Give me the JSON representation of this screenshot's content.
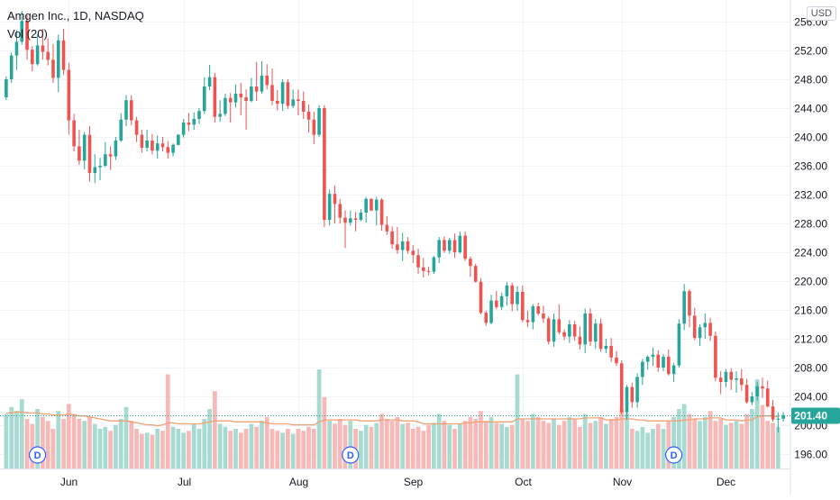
{
  "chart_data": {
    "type": "candlestick",
    "title": "Amgen Inc., 1D, NASDAQ",
    "indicator": "Vol (20)",
    "currency_label": "USD",
    "last_price": "201.40",
    "ylim": [
      194,
      259
    ],
    "y_ticks": [
      "256.00",
      "252.00",
      "248.00",
      "244.00",
      "240.00",
      "236.00",
      "232.00",
      "228.00",
      "224.00",
      "220.00",
      "216.00",
      "212.00",
      "208.00",
      "204.00",
      "200.00",
      "196.00"
    ],
    "x_tick_labels": [
      "Jun",
      "Jul",
      "Aug",
      "Sep",
      "Oct",
      "Nov",
      "Dec"
    ],
    "x_tick_index": [
      12,
      34,
      56,
      78,
      99,
      118,
      138
    ],
    "dividend_marker_label": "D",
    "dividend_index": [
      6,
      66,
      128
    ],
    "colors": {
      "up": "#26a69a",
      "down": "#ef5350",
      "vol_up": "#a7dbd2",
      "vol_down": "#f7b9b8",
      "vol_ma": "#f2a170",
      "last_price_bg": "#26a69a"
    },
    "candles": [
      [
        245.5,
        248.4,
        245.1,
        248.0
      ],
      [
        248.0,
        251.7,
        247.5,
        251.3
      ],
      [
        251.3,
        254.8,
        249.3,
        253.2
      ],
      [
        253.2,
        257.5,
        252.8,
        256.1
      ],
      [
        256.1,
        256.9,
        250.7,
        252.1
      ],
      [
        252.1,
        252.6,
        249.1,
        250.1
      ],
      [
        250.1,
        254.2,
        249.9,
        252.7
      ],
      [
        252.7,
        255.0,
        250.7,
        251.8
      ],
      [
        251.8,
        253.7,
        249.9,
        250.7
      ],
      [
        250.7,
        252.9,
        247.5,
        248.2
      ],
      [
        248.2,
        254.2,
        246.2,
        253.4
      ],
      [
        253.4,
        255.0,
        248.6,
        249.3
      ],
      [
        249.3,
        250.3,
        240.3,
        242.3
      ],
      [
        242.3,
        243.2,
        238.0,
        238.7
      ],
      [
        238.7,
        241.0,
        236.1,
        236.7
      ],
      [
        236.7,
        240.7,
        235.5,
        240.3
      ],
      [
        240.3,
        241.5,
        233.8,
        235.0
      ],
      [
        235.0,
        237.6,
        233.6,
        235.8
      ],
      [
        235.8,
        237.1,
        234.0,
        236.0
      ],
      [
        236.0,
        239.3,
        235.8,
        237.6
      ],
      [
        237.6,
        238.7,
        235.4,
        237.3
      ],
      [
        237.3,
        240.0,
        236.8,
        239.5
      ],
      [
        239.5,
        243.3,
        239.3,
        242.4
      ],
      [
        242.4,
        245.8,
        241.5,
        245.1
      ],
      [
        245.1,
        245.8,
        241.6,
        242.3
      ],
      [
        242.3,
        242.8,
        239.3,
        240.3
      ],
      [
        240.3,
        241.0,
        237.8,
        238.5
      ],
      [
        238.5,
        241.0,
        238.0,
        239.5
      ],
      [
        239.5,
        240.4,
        237.6,
        238.1
      ],
      [
        238.1,
        240.2,
        237.0,
        239.1
      ],
      [
        239.1,
        240.0,
        238.0,
        238.6
      ],
      [
        238.6,
        239.4,
        237.0,
        237.8
      ],
      [
        237.8,
        239.1,
        237.3,
        238.9
      ],
      [
        238.9,
        240.4,
        238.8,
        240.3
      ],
      [
        240.3,
        242.5,
        239.9,
        242.0
      ],
      [
        242.0,
        243.3,
        240.8,
        241.7
      ],
      [
        241.7,
        243.4,
        241.0,
        242.5
      ],
      [
        242.5,
        244.0,
        241.8,
        243.6
      ],
      [
        243.6,
        248.3,
        243.2,
        247.0
      ],
      [
        247.0,
        250.0,
        246.5,
        248.3
      ],
      [
        248.3,
        248.9,
        242.0,
        242.8
      ],
      [
        242.8,
        245.1,
        242.1,
        243.2
      ],
      [
        243.2,
        246.0,
        242.9,
        245.4
      ],
      [
        245.4,
        246.1,
        242.0,
        244.8
      ],
      [
        244.8,
        247.3,
        244.1,
        246.0
      ],
      [
        246.0,
        247.5,
        243.0,
        245.5
      ],
      [
        245.5,
        246.6,
        241.0,
        245.0
      ],
      [
        245.0,
        248.2,
        244.8,
        247.0
      ],
      [
        247.0,
        250.4,
        245.0,
        246.3
      ],
      [
        246.3,
        250.5,
        246.0,
        248.5
      ],
      [
        248.5,
        250.1,
        246.6,
        247.2
      ],
      [
        247.2,
        249.5,
        244.4,
        245.0
      ],
      [
        245.0,
        246.5,
        243.7,
        244.6
      ],
      [
        244.6,
        248.0,
        243.6,
        247.6
      ],
      [
        247.6,
        248.0,
        243.9,
        244.3
      ],
      [
        244.3,
        246.6,
        244.0,
        245.2
      ],
      [
        245.2,
        246.6,
        243.0,
        245.0
      ],
      [
        245.0,
        246.3,
        242.5,
        243.5
      ],
      [
        243.5,
        244.5,
        240.6,
        242.4
      ],
      [
        242.4,
        243.5,
        239.0,
        240.3
      ],
      [
        240.3,
        244.4,
        240.0,
        244.0
      ],
      [
        244.0,
        244.4,
        227.5,
        228.5
      ],
      [
        228.5,
        232.7,
        227.7,
        232.1
      ],
      [
        232.1,
        233.3,
        228.0,
        230.7
      ],
      [
        230.7,
        231.4,
        228.0,
        228.8
      ],
      [
        228.8,
        229.8,
        224.6,
        228.1
      ],
      [
        228.1,
        229.8,
        227.7,
        228.7
      ],
      [
        228.7,
        229.6,
        226.9,
        228.5
      ],
      [
        228.5,
        230.0,
        228.3,
        229.5
      ],
      [
        229.5,
        231.7,
        228.1,
        231.4
      ],
      [
        231.4,
        231.5,
        229.7,
        229.8
      ],
      [
        229.8,
        231.7,
        227.7,
        231.3
      ],
      [
        231.3,
        231.5,
        227.0,
        227.8
      ],
      [
        227.8,
        229.0,
        226.4,
        226.9
      ],
      [
        226.9,
        227.6,
        224.5,
        225.1
      ],
      [
        225.1,
        227.5,
        223.8,
        224.3
      ],
      [
        224.3,
        226.7,
        222.8,
        225.5
      ],
      [
        225.5,
        226.1,
        223.8,
        224.2
      ],
      [
        224.2,
        225.0,
        222.5,
        223.6
      ],
      [
        223.6,
        224.5,
        221.0,
        221.9
      ],
      [
        221.9,
        223.2,
        220.5,
        221.4
      ],
      [
        221.4,
        222.0,
        220.8,
        221.3
      ],
      [
        221.3,
        223.5,
        221.0,
        223.3
      ],
      [
        223.3,
        226.1,
        222.5,
        225.7
      ],
      [
        225.7,
        226.2,
        223.9,
        224.2
      ],
      [
        224.2,
        226.0,
        223.8,
        225.7
      ],
      [
        225.7,
        226.6,
        223.2,
        224.0
      ],
      [
        224.0,
        226.9,
        223.8,
        226.3
      ],
      [
        226.3,
        226.9,
        222.8,
        223.1
      ],
      [
        223.1,
        223.4,
        220.6,
        222.1
      ],
      [
        222.1,
        222.4,
        219.8,
        219.9
      ],
      [
        219.9,
        220.4,
        215.4,
        215.6
      ],
      [
        215.6,
        215.9,
        213.8,
        214.2
      ],
      [
        214.2,
        218.1,
        214.0,
        217.3
      ],
      [
        217.3,
        218.6,
        216.1,
        216.4
      ],
      [
        216.4,
        218.4,
        216.0,
        217.9
      ],
      [
        217.9,
        219.9,
        216.6,
        219.4
      ],
      [
        219.4,
        219.8,
        215.8,
        216.8
      ],
      [
        216.8,
        219.3,
        215.9,
        218.5
      ],
      [
        218.5,
        219.4,
        214.3,
        214.6
      ],
      [
        214.6,
        215.9,
        213.6,
        214.3
      ],
      [
        214.3,
        216.8,
        213.3,
        216.5
      ],
      [
        216.5,
        217.0,
        215.2,
        215.5
      ],
      [
        215.5,
        216.6,
        214.2,
        214.8
      ],
      [
        214.8,
        215.1,
        211.2,
        211.6
      ],
      [
        211.6,
        215.5,
        210.9,
        214.7
      ],
      [
        214.7,
        216.8,
        212.6,
        212.9
      ],
      [
        212.9,
        213.3,
        211.8,
        212.3
      ],
      [
        212.3,
        214.6,
        211.4,
        214.0
      ],
      [
        214.0,
        214.5,
        211.7,
        212.3
      ],
      [
        212.3,
        213.7,
        210.5,
        211.2
      ],
      [
        211.2,
        216.2,
        210.0,
        215.5
      ],
      [
        215.5,
        216.2,
        211.0,
        211.6
      ],
      [
        211.6,
        214.7,
        210.6,
        214.1
      ],
      [
        214.1,
        214.8,
        210.2,
        210.6
      ],
      [
        210.6,
        212.0,
        210.0,
        211.0
      ],
      [
        211.0,
        212.1,
        208.8,
        209.4
      ],
      [
        209.4,
        210.3,
        208.2,
        208.6
      ],
      [
        208.6,
        209.0,
        201.5,
        201.8
      ],
      [
        201.8,
        205.6,
        200.8,
        205.3
      ],
      [
        205.3,
        205.9,
        202.4,
        203.2
      ],
      [
        203.2,
        207.2,
        202.4,
        206.7
      ],
      [
        206.7,
        209.2,
        205.6,
        208.8
      ],
      [
        208.8,
        209.7,
        207.7,
        209.5
      ],
      [
        209.5,
        210.8,
        208.2,
        209.8
      ],
      [
        209.8,
        210.4,
        207.4,
        208.0
      ],
      [
        208.0,
        209.9,
        207.5,
        209.5
      ],
      [
        209.5,
        210.5,
        206.9,
        207.1
      ],
      [
        207.1,
        208.6,
        206.0,
        208.3
      ],
      [
        208.3,
        214.7,
        208.0,
        214.1
      ],
      [
        214.1,
        219.6,
        213.2,
        218.6
      ],
      [
        218.6,
        218.9,
        213.6,
        215.2
      ],
      [
        215.2,
        216.3,
        211.8,
        212.1
      ],
      [
        212.1,
        214.0,
        211.0,
        213.6
      ],
      [
        213.6,
        215.5,
        212.0,
        214.2
      ],
      [
        214.2,
        214.9,
        211.7,
        212.4
      ],
      [
        212.4,
        213.0,
        206.1,
        206.6
      ],
      [
        206.6,
        207.5,
        204.3,
        206.0
      ],
      [
        206.0,
        207.8,
        205.3,
        207.4
      ],
      [
        207.4,
        207.9,
        204.9,
        206.3
      ],
      [
        206.3,
        207.5,
        204.5,
        206.5
      ],
      [
        206.5,
        207.8,
        204.8,
        205.6
      ],
      [
        205.6,
        206.4,
        203.0,
        203.2
      ],
      [
        203.2,
        204.6,
        202.8,
        204.0
      ],
      [
        204.0,
        206.0,
        203.4,
        205.4
      ],
      [
        205.4,
        206.6,
        203.8,
        205.1
      ],
      [
        205.1,
        206.2,
        202.5,
        202.6
      ],
      [
        202.6,
        203.5,
        200.5,
        200.8
      ],
      [
        200.8,
        201.8,
        199.0,
        200.9
      ],
      [
        200.9,
        201.8,
        200.5,
        201.4
      ]
    ],
    "volume_rel": [
      0.55,
      0.62,
      0.58,
      0.7,
      0.5,
      0.45,
      0.6,
      0.52,
      0.48,
      0.4,
      0.58,
      0.5,
      0.65,
      0.55,
      0.5,
      0.48,
      0.52,
      0.45,
      0.4,
      0.42,
      0.38,
      0.44,
      0.5,
      0.62,
      0.48,
      0.4,
      0.35,
      0.36,
      0.34,
      0.4,
      0.38,
      0.95,
      0.42,
      0.4,
      0.36,
      0.38,
      0.45,
      0.4,
      0.5,
      0.6,
      0.78,
      0.45,
      0.42,
      0.38,
      0.4,
      0.36,
      0.4,
      0.45,
      0.42,
      0.48,
      0.52,
      0.4,
      0.38,
      0.36,
      0.4,
      0.35,
      0.4,
      0.38,
      0.42,
      0.4,
      1.0,
      0.72,
      0.48,
      0.45,
      0.5,
      0.44,
      0.48,
      0.4,
      0.38,
      0.44,
      0.42,
      0.46,
      0.55,
      0.5,
      0.48,
      0.52,
      0.45,
      0.46,
      0.4,
      0.42,
      0.38,
      0.44,
      0.46,
      0.55,
      0.48,
      0.44,
      0.4,
      0.45,
      0.48,
      0.52,
      0.5,
      0.58,
      0.48,
      0.52,
      0.46,
      0.45,
      0.42,
      0.44,
      0.95,
      0.5,
      0.48,
      0.55,
      0.52,
      0.48,
      0.46,
      0.5,
      0.44,
      0.48,
      0.52,
      0.5,
      0.42,
      0.55,
      0.46,
      0.48,
      0.52,
      0.45,
      0.5,
      0.52,
      0.6,
      0.56,
      0.4,
      0.38,
      0.42,
      0.36,
      0.4,
      0.45,
      0.4,
      0.48,
      0.52,
      0.6,
      0.65,
      0.55,
      0.5,
      0.48,
      0.52,
      0.58,
      0.48,
      0.5,
      0.44,
      0.46,
      0.48,
      0.45,
      0.55,
      0.6,
      0.9,
      0.64,
      0.48,
      0.46,
      0.42
    ],
    "volume_ma_rel": [
      0.56,
      0.56,
      0.57,
      0.57,
      0.56,
      0.56,
      0.56,
      0.55,
      0.55,
      0.54,
      0.54,
      0.54,
      0.55,
      0.54,
      0.53,
      0.53,
      0.52,
      0.51,
      0.5,
      0.49,
      0.48,
      0.48,
      0.48,
      0.48,
      0.47,
      0.46,
      0.45,
      0.44,
      0.44,
      0.43,
      0.44,
      0.46,
      0.46,
      0.45,
      0.45,
      0.45,
      0.45,
      0.45,
      0.46,
      0.47,
      0.48,
      0.48,
      0.48,
      0.48,
      0.47,
      0.47,
      0.47,
      0.47,
      0.47,
      0.47,
      0.46,
      0.45,
      0.45,
      0.45,
      0.45,
      0.44,
      0.44,
      0.44,
      0.44,
      0.44,
      0.47,
      0.49,
      0.49,
      0.49,
      0.49,
      0.49,
      0.49,
      0.49,
      0.48,
      0.48,
      0.48,
      0.48,
      0.49,
      0.49,
      0.49,
      0.49,
      0.48,
      0.48,
      0.48,
      0.47,
      0.45,
      0.45,
      0.45,
      0.45,
      0.45,
      0.45,
      0.45,
      0.45,
      0.46,
      0.46,
      0.47,
      0.47,
      0.47,
      0.47,
      0.47,
      0.47,
      0.47,
      0.47,
      0.5,
      0.5,
      0.5,
      0.5,
      0.5,
      0.5,
      0.5,
      0.5,
      0.5,
      0.5,
      0.5,
      0.5,
      0.5,
      0.51,
      0.51,
      0.51,
      0.51,
      0.49,
      0.49,
      0.49,
      0.5,
      0.5,
      0.5,
      0.49,
      0.49,
      0.48,
      0.48,
      0.48,
      0.48,
      0.48,
      0.48,
      0.48,
      0.49,
      0.49,
      0.5,
      0.5,
      0.5,
      0.51,
      0.51,
      0.51,
      0.49,
      0.49,
      0.49,
      0.48,
      0.49,
      0.49,
      0.52,
      0.53,
      0.53,
      0.53,
      0.52
    ]
  }
}
